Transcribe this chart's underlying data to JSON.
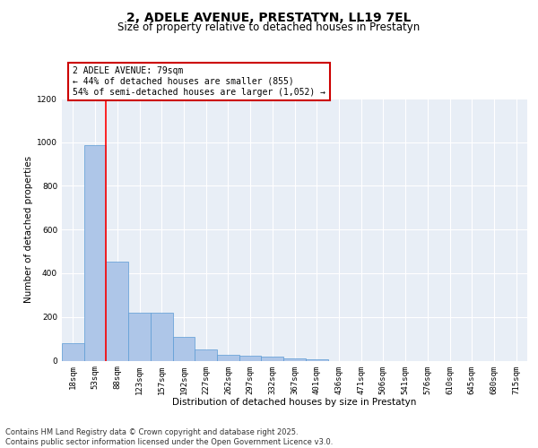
{
  "title1": "2, ADELE AVENUE, PRESTATYN, LL19 7EL",
  "title2": "Size of property relative to detached houses in Prestatyn",
  "xlabel": "Distribution of detached houses by size in Prestatyn",
  "ylabel": "Number of detached properties",
  "categories": [
    "18sqm",
    "53sqm",
    "88sqm",
    "123sqm",
    "157sqm",
    "192sqm",
    "227sqm",
    "262sqm",
    "297sqm",
    "332sqm",
    "367sqm",
    "401sqm",
    "436sqm",
    "471sqm",
    "506sqm",
    "541sqm",
    "576sqm",
    "610sqm",
    "645sqm",
    "680sqm",
    "715sqm"
  ],
  "values": [
    80,
    985,
    455,
    220,
    220,
    110,
    50,
    25,
    22,
    18,
    10,
    5,
    0,
    0,
    0,
    0,
    0,
    0,
    0,
    0,
    0
  ],
  "bar_color": "#aec6e8",
  "bar_edge_color": "#5b9bd5",
  "bg_color": "#e8eef6",
  "grid_color": "#ffffff",
  "red_line_x": 1.5,
  "annotation_text": "2 ADELE AVENUE: 79sqm\n← 44% of detached houses are smaller (855)\n54% of semi-detached houses are larger (1,052) →",
  "annotation_box_color": "#ffffff",
  "annotation_box_edge": "#cc0000",
  "ylim": [
    0,
    1200
  ],
  "yticks": [
    0,
    200,
    400,
    600,
    800,
    1000,
    1200
  ],
  "footer": "Contains HM Land Registry data © Crown copyright and database right 2025.\nContains public sector information licensed under the Open Government Licence v3.0.",
  "title_fontsize": 10,
  "subtitle_fontsize": 8.5,
  "axis_label_fontsize": 7.5,
  "tick_fontsize": 6.5,
  "annot_fontsize": 7,
  "footer_fontsize": 6
}
